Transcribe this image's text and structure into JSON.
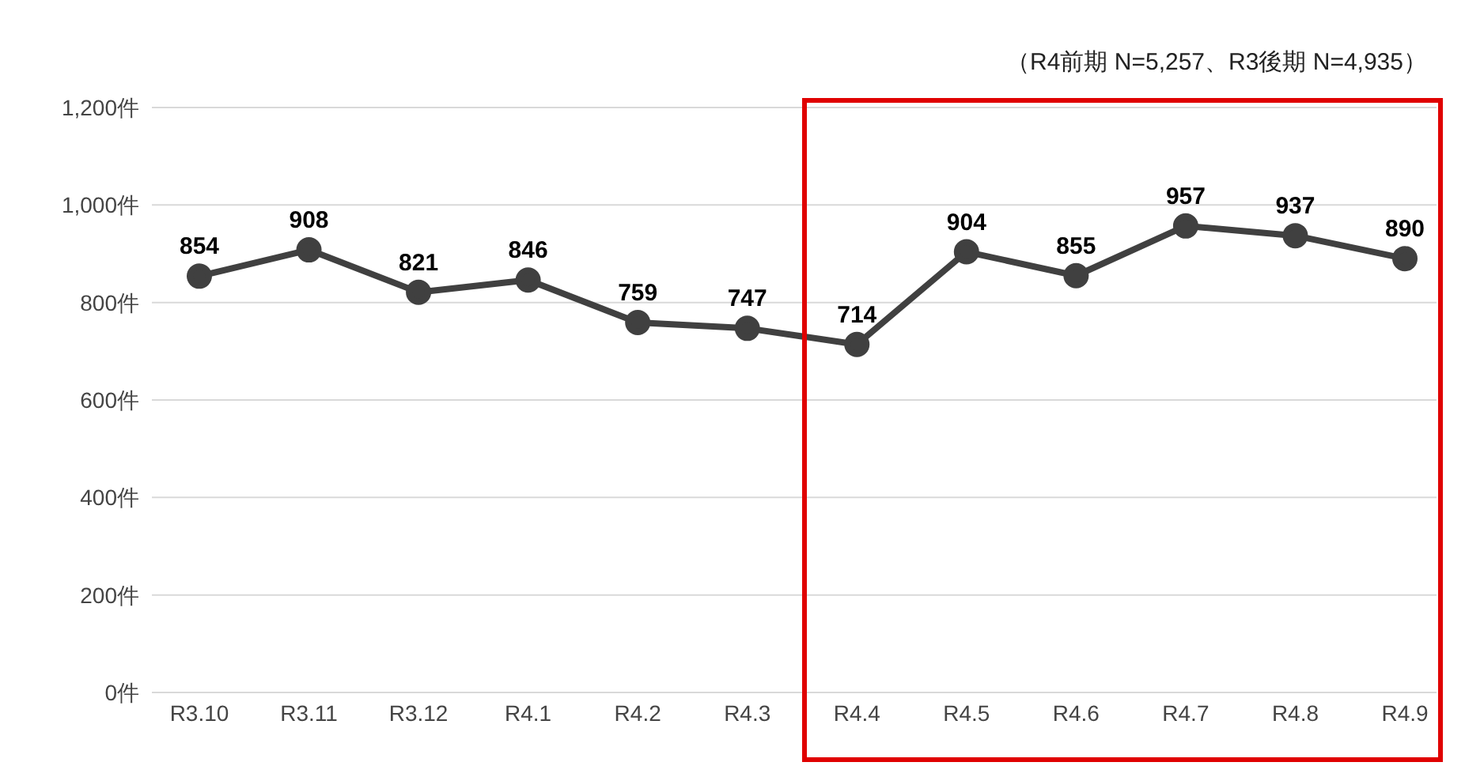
{
  "chart_data": {
    "type": "line",
    "categories": [
      "R3.10",
      "R3.11",
      "R3.12",
      "R4.1",
      "R4.2",
      "R4.3",
      "R4.4",
      "R4.5",
      "R4.6",
      "R4.7",
      "R4.8",
      "R4.9"
    ],
    "series": [
      {
        "color": "#404040",
        "values": [
          854,
          908,
          821,
          846,
          759,
          747,
          714,
          904,
          855,
          957,
          937,
          890
        ]
      }
    ],
    "ylim": [
      0,
      1200
    ],
    "yticks": [
      {
        "value": 0,
        "label": "0件"
      },
      {
        "value": 200,
        "label": "200件"
      },
      {
        "value": 400,
        "label": "400件"
      },
      {
        "value": 600,
        "label": "600件"
      },
      {
        "value": 800,
        "label": "800件"
      },
      {
        "value": 1000,
        "label": "1,000件"
      },
      {
        "value": 1200,
        "label": "1,200件"
      }
    ],
    "grid": "y",
    "marker": "circle",
    "line_style": "solid",
    "data_labels": true,
    "legend": false,
    "annotations": [
      "（R4前期 N=5,257、R3後期 N=4,935）"
    ]
  }
}
